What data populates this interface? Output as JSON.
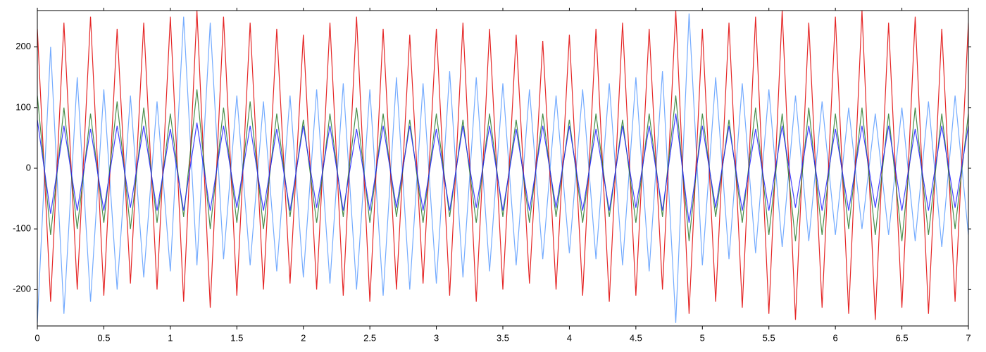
{
  "chart_data": {
    "type": "line",
    "x": [
      0,
      0.1,
      0.2,
      0.3,
      0.4,
      0.5,
      0.6,
      0.7,
      0.8,
      0.9,
      1,
      1.1,
      1.2,
      1.3,
      1.4,
      1.5,
      1.6,
      1.7,
      1.8,
      1.9,
      2,
      2.1,
      2.2,
      2.3,
      2.4,
      2.5,
      2.6,
      2.7,
      2.8,
      2.9,
      3,
      3.1,
      3.2,
      3.3,
      3.4,
      3.5,
      3.6,
      3.7,
      3.8,
      3.9,
      4,
      4.1,
      4.2,
      4.3,
      4.4,
      4.5,
      4.6,
      4.7,
      4.8,
      4.9,
      5,
      5.1,
      5.2,
      5.3,
      5.4,
      5.5,
      5.6,
      5.7,
      5.8,
      5.9,
      6,
      6.1,
      6.2,
      6.3,
      6.4,
      6.5,
      6.6,
      6.7,
      6.8,
      6.9,
      7
    ],
    "series": [
      {
        "color": "#5c9cff",
        "values": [
          -255,
          200,
          -240,
          150,
          -220,
          130,
          -200,
          120,
          -180,
          110,
          -170,
          250,
          -160,
          240,
          -150,
          120,
          -160,
          110,
          -170,
          120,
          -180,
          130,
          -190,
          140,
          -200,
          130,
          -210,
          150,
          -200,
          140,
          -190,
          160,
          -180,
          150,
          -170,
          140,
          -160,
          130,
          -150,
          120,
          -140,
          130,
          -150,
          140,
          -160,
          150,
          -170,
          160,
          -255,
          255,
          -160,
          150,
          -150,
          140,
          -140,
          130,
          -130,
          120,
          -120,
          110,
          -110,
          100,
          -100,
          90,
          -110,
          100,
          -120,
          110,
          -130,
          120,
          -110
        ]
      },
      {
        "color": "#e00000",
        "values": [
          230,
          -220,
          240,
          -200,
          250,
          -210,
          230,
          -190,
          240,
          -200,
          250,
          -220,
          260,
          -230,
          250,
          -210,
          240,
          -200,
          230,
          -190,
          220,
          -200,
          240,
          -210,
          250,
          -220,
          230,
          -200,
          220,
          -190,
          230,
          -210,
          240,
          -220,
          230,
          -200,
          220,
          -190,
          210,
          -200,
          220,
          -210,
          230,
          -220,
          240,
          -210,
          230,
          -200,
          260,
          -240,
          230,
          -220,
          240,
          -230,
          250,
          -240,
          260,
          -250,
          240,
          -230,
          250,
          -240,
          260,
          -250,
          240,
          -230,
          250,
          -240,
          230,
          -220,
          240
        ]
      },
      {
        "color": "#2a7a2a",
        "values": [
          120,
          -110,
          100,
          -100,
          90,
          -90,
          110,
          -100,
          100,
          -90,
          90,
          -80,
          130,
          -100,
          100,
          -90,
          110,
          -100,
          90,
          -80,
          80,
          -90,
          90,
          -80,
          100,
          -90,
          90,
          -80,
          80,
          -90,
          90,
          -80,
          80,
          -90,
          90,
          -80,
          80,
          -90,
          90,
          -80,
          80,
          -90,
          90,
          -80,
          80,
          -90,
          90,
          -80,
          120,
          -120,
          90,
          -80,
          80,
          -90,
          100,
          -110,
          90,
          -120,
          100,
          -110,
          90,
          -100,
          100,
          -110,
          90,
          -120,
          100,
          -110,
          90,
          -100,
          90
        ]
      },
      {
        "color": "#2222ff",
        "values": [
          80,
          -75,
          70,
          -70,
          65,
          -70,
          70,
          -65,
          70,
          -70,
          65,
          -70,
          75,
          -70,
          70,
          -65,
          70,
          -70,
          65,
          -70,
          70,
          -65,
          70,
          -70,
          65,
          -70,
          70,
          -65,
          70,
          -70,
          65,
          -70,
          70,
          -65,
          70,
          -70,
          65,
          -70,
          70,
          -65,
          70,
          -70,
          65,
          -70,
          70,
          -65,
          70,
          -70,
          90,
          -90,
          70,
          -65,
          70,
          -70,
          65,
          -70,
          70,
          -65,
          70,
          -70,
          65,
          -70,
          70,
          -65,
          70,
          -70,
          65,
          -70,
          70,
          -65,
          70
        ]
      }
    ],
    "xlim": [
      0,
      7
    ],
    "xticks": [
      0,
      0.5,
      1,
      1.5,
      2,
      2.5,
      3,
      3.5,
      4,
      4.5,
      5,
      5.5,
      6,
      6.5,
      7
    ],
    "ylim": [
      -260,
      260
    ],
    "yticks": [
      -200,
      -100,
      0,
      100,
      200
    ],
    "grid": false
  }
}
